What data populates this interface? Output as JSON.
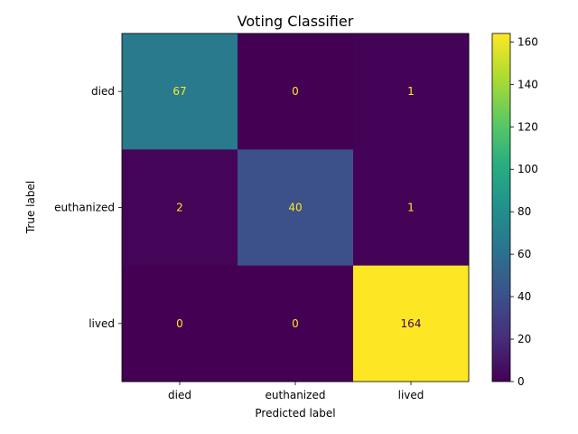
{
  "chart_data": {
    "type": "heatmap",
    "title": "Voting Classifier",
    "xlabel": "Predicted label",
    "ylabel": "True label",
    "x_categories": [
      "died",
      "euthanized",
      "lived"
    ],
    "y_categories": [
      "died",
      "euthanized",
      "lived"
    ],
    "values": [
      [
        67,
        0,
        1
      ],
      [
        2,
        40,
        1
      ],
      [
        0,
        0,
        164
      ]
    ],
    "colormap": "viridis",
    "colorbar": {
      "range": [
        0,
        164
      ],
      "ticks": [
        0,
        20,
        40,
        60,
        80,
        100,
        120,
        140,
        160
      ]
    },
    "text_color_on_dark": "#fde725",
    "text_color_on_light": "#440154"
  }
}
